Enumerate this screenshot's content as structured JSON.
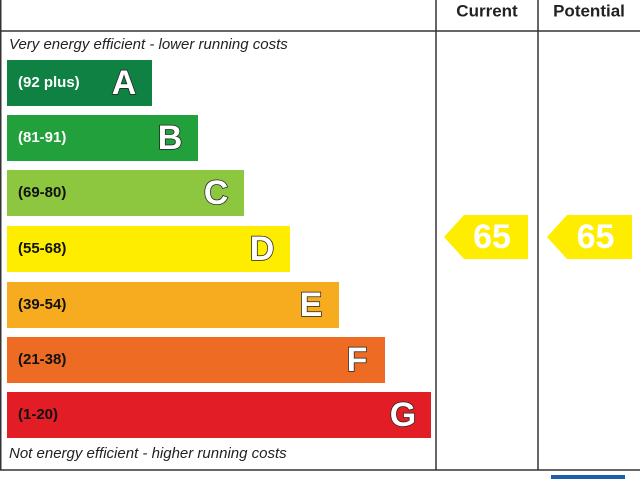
{
  "header": {
    "current": "Current",
    "potential": "Potential"
  },
  "top_note": "Very energy efficient - lower running costs",
  "bottom_note": "Not energy efficient - higher running costs",
  "bands": [
    {
      "range": "(92 plus)",
      "letter": "A",
      "color": "#0f8142",
      "text_color": "#ffffff"
    },
    {
      "range": "(81-91)",
      "letter": "B",
      "color": "#21a03c",
      "text_color": "#ffffff"
    },
    {
      "range": "(69-80)",
      "letter": "C",
      "color": "#8dc63f",
      "text_color": "#111111"
    },
    {
      "range": "(55-68)",
      "letter": "D",
      "color": "#ffed00",
      "text_color": "#111111"
    },
    {
      "range": "(39-54)",
      "letter": "E",
      "color": "#f7ac1f",
      "text_color": "#111111"
    },
    {
      "range": "(21-38)",
      "letter": "F",
      "color": "#ed6b23",
      "text_color": "#111111"
    },
    {
      "range": "(1-20)",
      "letter": "G",
      "color": "#e21d26",
      "text_color": "#111111"
    }
  ],
  "current": {
    "score": "65",
    "color": "#ffed00"
  },
  "potential": {
    "score": "65",
    "color": "#ffed00"
  }
}
